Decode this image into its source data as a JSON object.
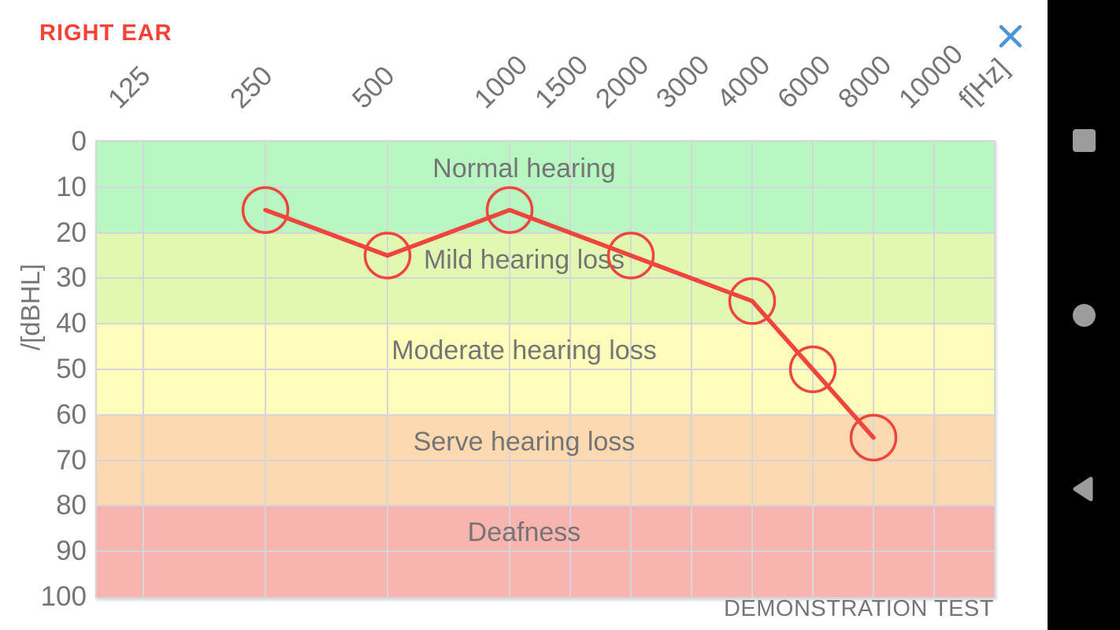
{
  "header": {
    "title": "RIGHT EAR"
  },
  "colors": {
    "title_red": "#f44336",
    "close_blue": "#4a96d8",
    "axis_text_gray": "#757575",
    "gridline": "#d5d5da",
    "navbar_bg": "#000000",
    "nav_icon_gray": "#9c9c9c"
  },
  "chart_data": {
    "type": "line",
    "x_axis_label": "f[Hz]",
    "y_axis_label": "/[dBHL]",
    "x_ticks": [
      "125",
      "250",
      "500",
      "1000",
      "1500",
      "2000",
      "3000",
      "4000",
      "6000",
      "8000",
      "10000"
    ],
    "y_ticks": [
      "0",
      "10",
      "20",
      "30",
      "40",
      "50",
      "60",
      "70",
      "80",
      "90",
      "100"
    ],
    "y_range": [
      0,
      100
    ],
    "grid": true,
    "zones": [
      {
        "label": "Normal hearing",
        "from": 0,
        "to": 20,
        "color": "#b8f6c2"
      },
      {
        "label": "Mild hearing loss",
        "from": 20,
        "to": 40,
        "color": "#e2f8b2"
      },
      {
        "label": "Moderate hearing loss",
        "from": 40,
        "to": 60,
        "color": "#fdfdbc"
      },
      {
        "label": "Serve hearing loss",
        "from": 60,
        "to": 80,
        "color": "#fcd9b0"
      },
      {
        "label": "Deafness",
        "from": 80,
        "to": 100,
        "color": "#fab4b0"
      }
    ],
    "series": [
      {
        "name": "right-ear-threshold",
        "color": "#f0453c",
        "marker": "circle",
        "points": [
          {
            "f": "250",
            "db": 15
          },
          {
            "f": "500",
            "db": 25
          },
          {
            "f": "1000",
            "db": 15
          },
          {
            "f": "2000",
            "db": 25
          },
          {
            "f": "4000",
            "db": 35
          },
          {
            "f": "6000",
            "db": 50
          },
          {
            "f": "8000",
            "db": 65
          }
        ]
      }
    ],
    "watermark": "DEMONSTRATION TEST"
  },
  "nav_bar": {
    "items": [
      {
        "name": "recents",
        "shape": "square"
      },
      {
        "name": "home",
        "shape": "circle"
      },
      {
        "name": "back",
        "shape": "triangle"
      }
    ]
  }
}
